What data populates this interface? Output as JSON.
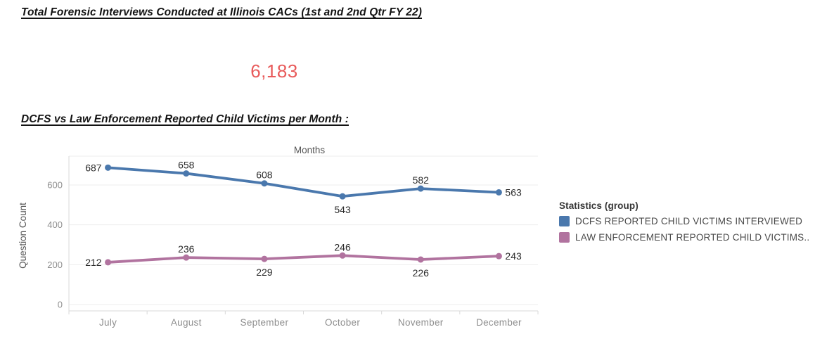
{
  "header": {
    "title": "Total Forensic Interviews Conducted at Illinois CACs (1st and 2nd Qtr FY 22)"
  },
  "summary": {
    "total_value": "6,183",
    "color": "#e85a5a"
  },
  "section": {
    "title": "DCFS vs Law Enforcement Reported Child Victims per Month :"
  },
  "chart_data": {
    "type": "line",
    "title": "Months",
    "xlabel": "Months",
    "ylabel": "Question Count",
    "categories": [
      "July",
      "August",
      "September",
      "October",
      "November",
      "December"
    ],
    "yticks": [
      0,
      200,
      400,
      600
    ],
    "ylim": [
      0,
      745
    ],
    "grid": true,
    "data_labels": true,
    "legend_position": "right",
    "axis_text_color": "#8e8e8e",
    "axis_title_color": "#555555",
    "label_color": "#2c2c2c",
    "gridline_color": "#ededed",
    "axisline_color": "#d9d9d9",
    "series": [
      {
        "name": "DCFS REPORTED CHILD VICTIMS INTERVIEWED",
        "color": "#4a78ad",
        "values": [
          687,
          658,
          608,
          543,
          582,
          563
        ],
        "label_placement": [
          "left",
          "above",
          "above",
          "below",
          "above",
          "right"
        ]
      },
      {
        "name": "LAW ENFORCEMENT REPORTED CHILD VICTIMS..",
        "color": "#b1739f",
        "values": [
          212,
          236,
          229,
          246,
          226,
          243
        ],
        "label_placement": [
          "left",
          "above",
          "below",
          "above",
          "below",
          "right"
        ]
      }
    ]
  },
  "legend": {
    "title": "Statistics (group)",
    "items": [
      {
        "label": "DCFS REPORTED CHILD VICTIMS INTERVIEWED",
        "color": "#4a78ad"
      },
      {
        "label": "LAW ENFORCEMENT REPORTED CHILD VICTIMS..",
        "color": "#b1739f"
      }
    ]
  }
}
